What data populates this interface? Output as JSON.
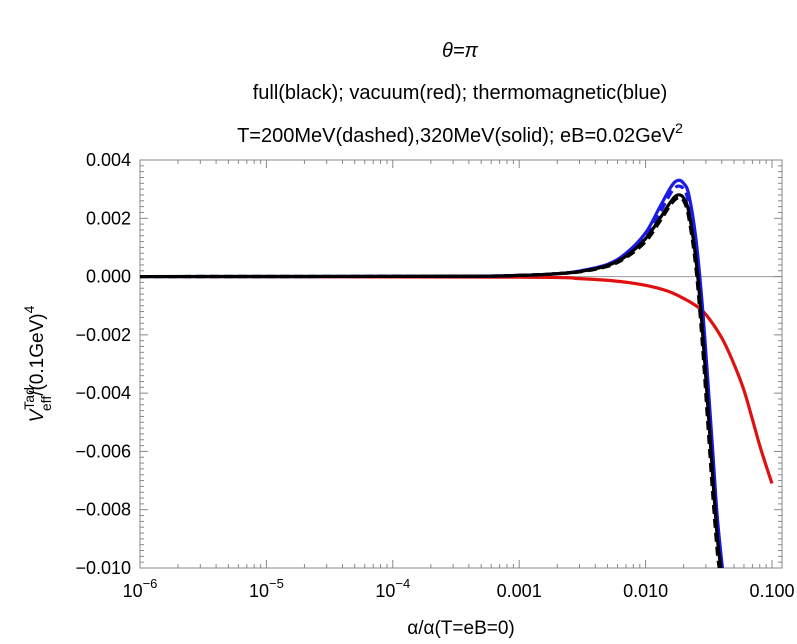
{
  "chart_data": {
    "type": "line",
    "title_lines": [
      {
        "type": "theta",
        "main": "θ=π"
      },
      {
        "type": "plain",
        "main": "full(black); vacuum(red); thermomagnetic(blue)"
      },
      {
        "type": "super",
        "main": "T=200MeV(dashed),320MeV(solid); eB=0.02GeV",
        "sup": "2"
      }
    ],
    "ylabel": {
      "main": "V",
      "sup": "Tad",
      "sub": "eff",
      "rest": "/(0.1GeV)",
      "rest_sup": "4"
    },
    "xlabel": "α/α(T=eB=0)",
    "x_scale": "log",
    "xlim": [
      1e-06,
      0.12
    ],
    "ylim": [
      -0.01,
      0.004
    ],
    "x_ticks": [
      {
        "value": 1e-06,
        "base": "10",
        "exp": "−6"
      },
      {
        "value": 1e-05,
        "base": "10",
        "exp": "−5"
      },
      {
        "value": 0.0001,
        "base": "10",
        "exp": "−4"
      },
      {
        "value": 0.001,
        "label": "0.001"
      },
      {
        "value": 0.01,
        "label": "0.010"
      },
      {
        "value": 0.1,
        "label": "0.100"
      }
    ],
    "y_ticks": [
      {
        "value": 0.004,
        "label": "0.004"
      },
      {
        "value": 0.002,
        "label": "0.002"
      },
      {
        "value": 0.0,
        "label": "0.000"
      },
      {
        "value": -0.002,
        "label": "−0.002"
      },
      {
        "value": -0.004,
        "label": "−0.004"
      },
      {
        "value": -0.006,
        "label": "−0.006"
      },
      {
        "value": -0.008,
        "label": "−0.008"
      },
      {
        "value": -0.01,
        "label": "−0.010"
      }
    ],
    "grid": false,
    "zero_line": true,
    "series": [
      {
        "group": "vacuum",
        "color": "#e01010",
        "style": "solid",
        "x": [
          1e-06,
          0.001,
          0.003,
          0.006,
          0.01,
          0.015,
          0.02,
          0.025,
          0.03,
          0.04,
          0.05,
          0.06,
          0.07,
          0.08,
          0.09,
          0.1
        ],
        "y": [
          0.0,
          -2e-05,
          -7e-05,
          -0.00016,
          -0.0003,
          -0.0005,
          -0.00075,
          -0.001,
          -0.0013,
          -0.0021,
          -0.003,
          -0.0039,
          -0.0049,
          -0.0058,
          -0.0065,
          -0.0071
        ]
      },
      {
        "group": "thermomagnetic",
        "color": "#1a1ae6",
        "style": "dashed",
        "x": [
          1e-06,
          0.0003,
          0.001,
          0.002,
          0.003,
          0.005,
          0.007,
          0.01,
          0.013,
          0.016,
          0.018,
          0.02,
          0.022,
          0.025,
          0.028,
          0.031,
          0.034,
          0.037,
          0.04
        ],
        "y": [
          0.0,
          1e-05,
          4e-05,
          0.0001,
          0.00018,
          0.0004,
          0.00075,
          0.0014,
          0.0022,
          0.0029,
          0.0031,
          0.003,
          0.0025,
          0.0008,
          -0.0015,
          -0.0041,
          -0.0066,
          -0.0088,
          -0.0102
        ]
      },
      {
        "group": "thermomagnetic",
        "color": "#1a1ae6",
        "style": "solid",
        "x": [
          1e-06,
          0.0003,
          0.001,
          0.002,
          0.003,
          0.005,
          0.007,
          0.01,
          0.013,
          0.016,
          0.018,
          0.02,
          0.022,
          0.025,
          0.028,
          0.031,
          0.034,
          0.037,
          0.041
        ],
        "y": [
          0.0,
          1e-05,
          4e-05,
          0.0001,
          0.00019,
          0.00042,
          0.0008,
          0.0015,
          0.0024,
          0.0031,
          0.0033,
          0.0032,
          0.0028,
          0.0013,
          -0.0009,
          -0.0035,
          -0.006,
          -0.0083,
          -0.0102
        ]
      },
      {
        "group": "full",
        "color": "#000000",
        "style": "solid",
        "x": [
          1e-06,
          0.0003,
          0.001,
          0.002,
          0.003,
          0.005,
          0.007,
          0.01,
          0.013,
          0.016,
          0.018,
          0.02,
          0.022,
          0.025,
          0.028,
          0.031,
          0.034,
          0.037,
          0.04
        ],
        "y": [
          0.0,
          1e-05,
          4e-05,
          0.0001,
          0.00017,
          0.00038,
          0.0007,
          0.0013,
          0.002,
          0.0026,
          0.0028,
          0.0027,
          0.0022,
          0.0006,
          -0.0017,
          -0.0044,
          -0.0069,
          -0.009,
          -0.0102
        ]
      },
      {
        "group": "full",
        "color": "#000000",
        "style": "dashed",
        "x": [
          1e-06,
          0.0003,
          0.001,
          0.002,
          0.003,
          0.005,
          0.007,
          0.01,
          0.013,
          0.016,
          0.018,
          0.02,
          0.022,
          0.025,
          0.028,
          0.031,
          0.034,
          0.037,
          0.039
        ],
        "y": [
          0.0,
          1e-05,
          4e-05,
          0.0001,
          0.00016,
          0.00035,
          0.00065,
          0.0012,
          0.0019,
          0.0025,
          0.0027,
          0.0026,
          0.002,
          0.0003,
          -0.0022,
          -0.005,
          -0.0075,
          -0.0095,
          -0.0102
        ]
      }
    ]
  }
}
